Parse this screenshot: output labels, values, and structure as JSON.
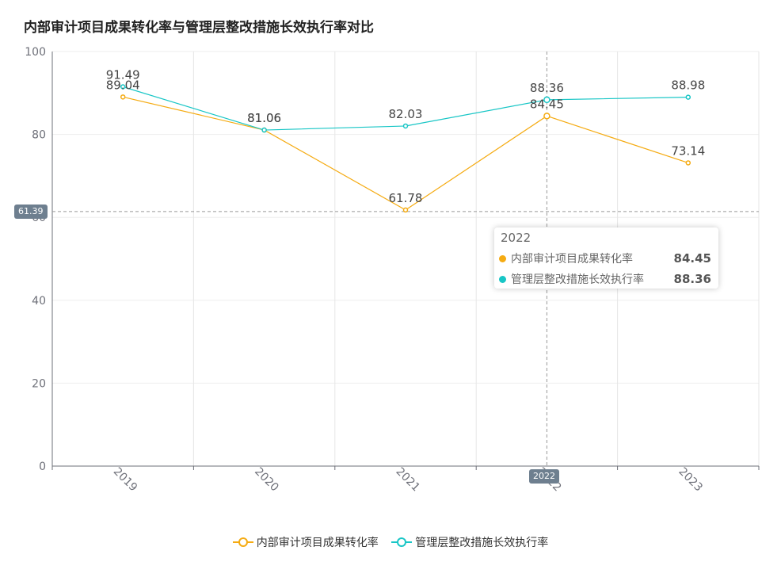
{
  "title": "内部审计项目成果转化率与管理层整改措施长效执行率对比",
  "chart_data": {
    "type": "line",
    "categories": [
      "2019",
      "2020",
      "2021",
      "2022",
      "2023"
    ],
    "series": [
      {
        "name": "内部审计项目成果转化率",
        "values": [
          89.04,
          81.06,
          61.78,
          84.45,
          73.14
        ],
        "color": "#f5ab12"
      },
      {
        "name": "管理层整改措施长效执行率",
        "values": [
          91.49,
          81.06,
          82.03,
          88.36,
          88.98
        ],
        "color": "#18c6c6"
      }
    ],
    "ylim": [
      0,
      100
    ],
    "yticks": [
      0,
      20,
      40,
      60,
      80,
      100
    ],
    "grid": true,
    "legend_position": "bottom"
  },
  "tooltip": {
    "title": "2022",
    "rows": [
      {
        "name": "内部审计项目成果转化率",
        "value": "84.45",
        "color": "#f5ab12"
      },
      {
        "name": "管理层整改措施长效执行率",
        "value": "88.36",
        "color": "#18c6c6"
      }
    ]
  },
  "crosshair": {
    "y_label": "61.39",
    "x_label": "2022"
  }
}
